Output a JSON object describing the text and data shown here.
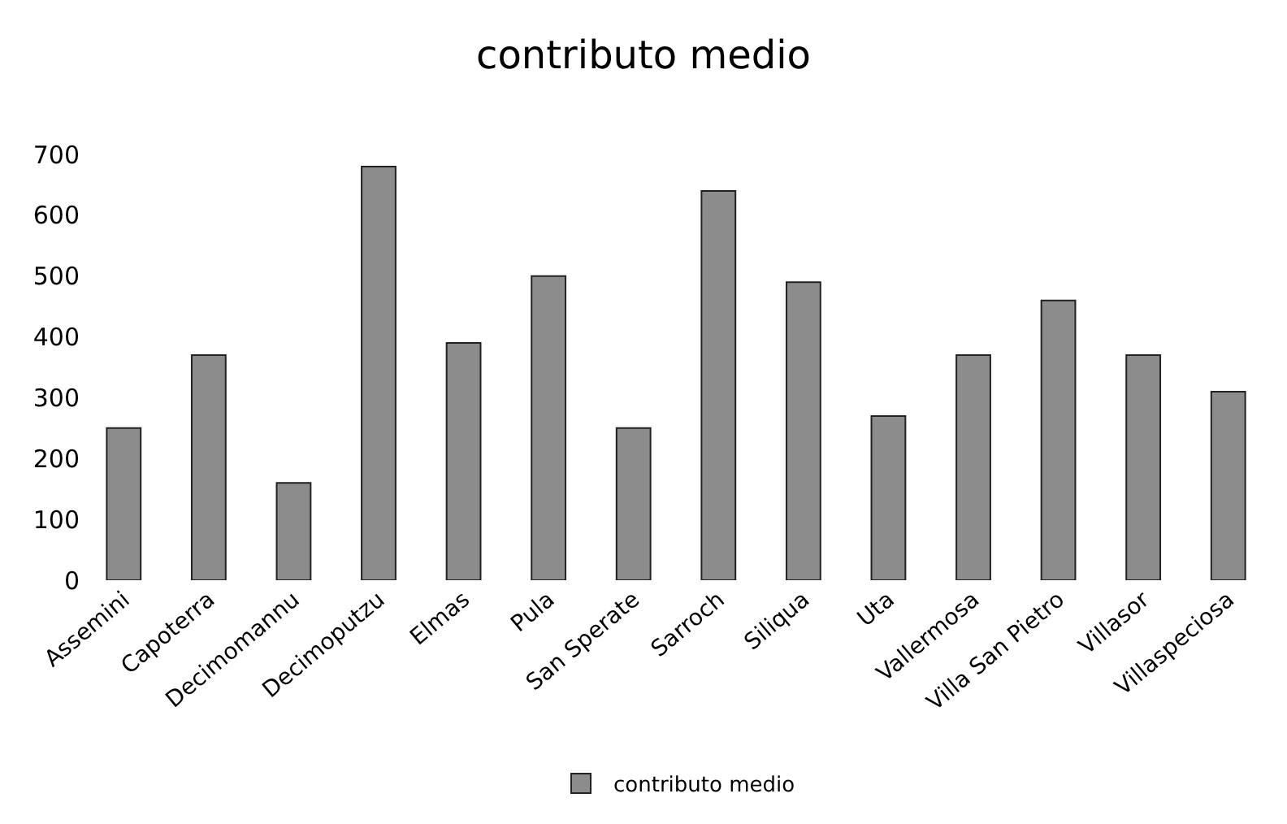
{
  "chart_data": {
    "type": "bar",
    "title": "contributo medio",
    "categories": [
      "Assemini",
      "Capoterra",
      "Decimomannu",
      "Decimoputzu",
      "Elmas",
      "Pula",
      "San Sperate",
      "Sarroch",
      "Siliqua",
      "Uta",
      "Vallermosa",
      "Villa San Pietro",
      "Villasor",
      "Villaspeciosa"
    ],
    "series": [
      {
        "name": "contributo medio",
        "color": "#8c8c8c",
        "values": [
          250,
          370,
          160,
          680,
          390,
          500,
          250,
          640,
          490,
          270,
          370,
          460,
          370,
          310
        ]
      }
    ],
    "ylim": [
      0,
      700
    ],
    "yticks": [
      0,
      100,
      200,
      300,
      400,
      500,
      600,
      700
    ],
    "grid": false,
    "legend": "bottom"
  }
}
